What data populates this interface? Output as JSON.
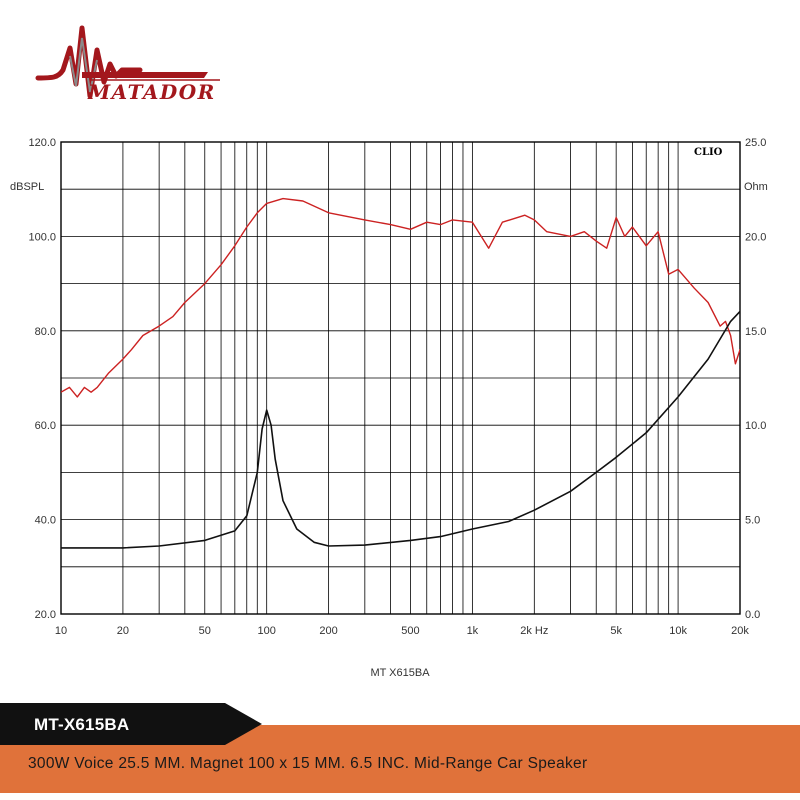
{
  "brand": {
    "name": "MATADOR",
    "colors": {
      "red": "#a3171c",
      "grey": "#8a8a8a"
    }
  },
  "banner": {
    "model": "MT-X615BA",
    "spec": "300W Voice 25.5 MM. Magnet 100 x 15 MM. 6.5 INC. Mid-Range Car Speaker",
    "colors": {
      "dark": "#111111",
      "orange": "#e0723a"
    }
  },
  "chart_data": {
    "type": "line",
    "watermark": "CLIO",
    "caption": "MT X615BA",
    "x_scale": "log",
    "xlim": [
      10,
      20000
    ],
    "xticks": [
      {
        "value": 10,
        "label": "10"
      },
      {
        "value": 20,
        "label": "20"
      },
      {
        "value": 50,
        "label": "50"
      },
      {
        "value": 100,
        "label": "100"
      },
      {
        "value": 200,
        "label": "200"
      },
      {
        "value": 500,
        "label": "500"
      },
      {
        "value": 1000,
        "label": "1k"
      },
      {
        "value": 2000,
        "label": "2k Hz"
      },
      {
        "value": 5000,
        "label": "5k"
      },
      {
        "value": 10000,
        "label": "10k"
      },
      {
        "value": 20000,
        "label": "20k"
      }
    ],
    "y_left": {
      "unit_label": "dBSPL",
      "ylim": [
        20,
        120
      ],
      "ticks": [
        {
          "value": 20,
          "label": "20.0"
        },
        {
          "value": 40,
          "label": "40.0"
        },
        {
          "value": 60,
          "label": "60.0"
        },
        {
          "value": 80,
          "label": "80.0"
        },
        {
          "value": 100,
          "label": "100.0"
        },
        {
          "value": 120,
          "label": "120.0"
        }
      ]
    },
    "y_right": {
      "unit_label": "Ohm",
      "ylim": [
        0,
        25
      ],
      "ticks": [
        {
          "value": 0,
          "label": "0.0"
        },
        {
          "value": 5,
          "label": "5.0"
        },
        {
          "value": 10,
          "label": "10.0"
        },
        {
          "value": 15,
          "label": "15.0"
        },
        {
          "value": 20,
          "label": "20.0"
        },
        {
          "value": 25,
          "label": "25.0"
        }
      ]
    },
    "grid": true,
    "series": [
      {
        "axis": "left",
        "color": "#cc2222",
        "points": [
          [
            10,
            67
          ],
          [
            11,
            68
          ],
          [
            12,
            66
          ],
          [
            13,
            68
          ],
          [
            14,
            67
          ],
          [
            15,
            68
          ],
          [
            17,
            71
          ],
          [
            20,
            74
          ],
          [
            22,
            76
          ],
          [
            25,
            79
          ],
          [
            30,
            81
          ],
          [
            35,
            83
          ],
          [
            40,
            86
          ],
          [
            50,
            90
          ],
          [
            60,
            94
          ],
          [
            70,
            98
          ],
          [
            80,
            102
          ],
          [
            90,
            105
          ],
          [
            100,
            107
          ],
          [
            120,
            108
          ],
          [
            150,
            107.5
          ],
          [
            200,
            105
          ],
          [
            300,
            103.5
          ],
          [
            400,
            102.5
          ],
          [
            500,
            101.5
          ],
          [
            600,
            103
          ],
          [
            700,
            102.5
          ],
          [
            800,
            103.5
          ],
          [
            1000,
            103
          ],
          [
            1200,
            97.5
          ],
          [
            1400,
            103
          ],
          [
            1800,
            104.5
          ],
          [
            2000,
            103.5
          ],
          [
            2300,
            101
          ],
          [
            3000,
            100
          ],
          [
            3500,
            101
          ],
          [
            4000,
            99
          ],
          [
            4500,
            97.5
          ],
          [
            5000,
            104
          ],
          [
            5500,
            100
          ],
          [
            6000,
            102
          ],
          [
            7000,
            98
          ],
          [
            8000,
            101
          ],
          [
            9000,
            92
          ],
          [
            10000,
            93
          ],
          [
            12000,
            89
          ],
          [
            14000,
            86
          ],
          [
            16000,
            81
          ],
          [
            17000,
            82
          ],
          [
            18000,
            79
          ],
          [
            19000,
            73
          ],
          [
            20000,
            76
          ],
          [
            21000,
            75
          ],
          [
            22000,
            73.5
          ]
        ]
      },
      {
        "axis": "right",
        "color": "#111111",
        "points": [
          [
            10,
            3.5
          ],
          [
            20,
            3.5
          ],
          [
            30,
            3.6
          ],
          [
            50,
            3.9
          ],
          [
            70,
            4.4
          ],
          [
            80,
            5.2
          ],
          [
            90,
            7.5
          ],
          [
            95,
            9.8
          ],
          [
            100,
            10.8
          ],
          [
            105,
            10.0
          ],
          [
            110,
            8.2
          ],
          [
            120,
            6.0
          ],
          [
            140,
            4.5
          ],
          [
            170,
            3.8
          ],
          [
            200,
            3.6
          ],
          [
            300,
            3.65
          ],
          [
            500,
            3.9
          ],
          [
            700,
            4.1
          ],
          [
            1000,
            4.5
          ],
          [
            1500,
            4.9
          ],
          [
            2000,
            5.5
          ],
          [
            3000,
            6.5
          ],
          [
            4000,
            7.5
          ],
          [
            5000,
            8.3
          ],
          [
            7000,
            9.6
          ],
          [
            10000,
            11.5
          ],
          [
            14000,
            13.5
          ],
          [
            18000,
            15.5
          ],
          [
            22000,
            16.5
          ]
        ]
      }
    ]
  }
}
